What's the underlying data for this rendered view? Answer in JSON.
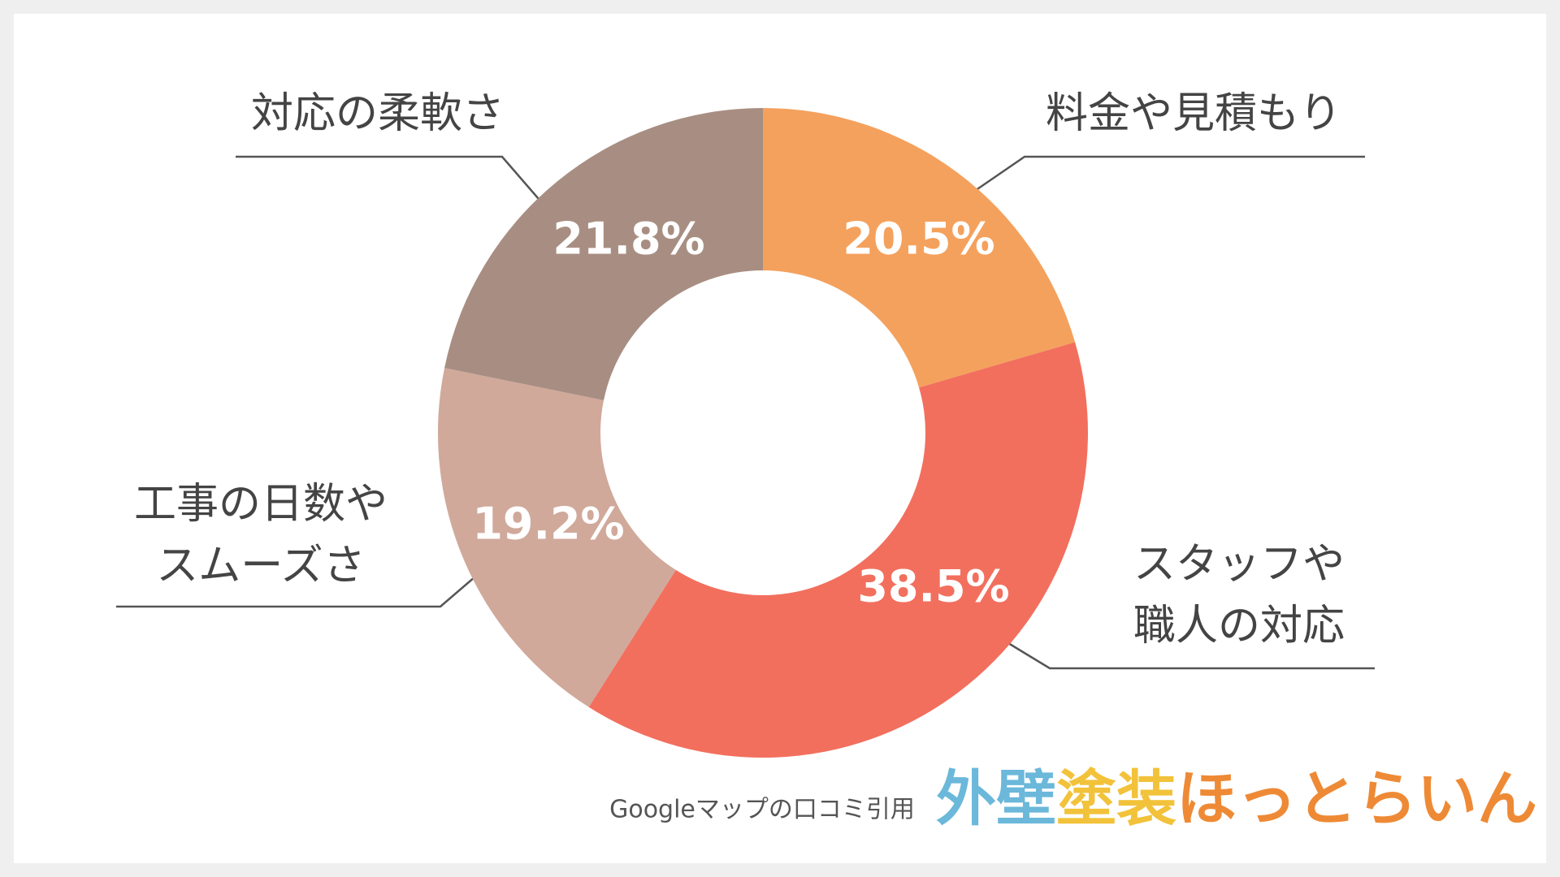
{
  "chart_data": {
    "type": "donut",
    "categories": [
      [
        "料金や見積もり"
      ],
      [
        "スタッフや",
        "職人の対応"
      ],
      [
        "工事の日数や",
        "スムーズさ"
      ],
      [
        "対応の柔軟さ"
      ]
    ],
    "values": [
      20.5,
      38.5,
      19.2,
      21.8
    ],
    "value_labels": [
      "20.5%",
      "38.5%",
      "19.2%",
      "21.8%"
    ],
    "colors": [
      "#F4A15D",
      "#F26F5E",
      "#D0A99B",
      "#A88E82"
    ],
    "source": "Googleマップの口コミ引用"
  },
  "logo": [
    "外壁",
    "塗装",
    "ほっとらいん"
  ]
}
